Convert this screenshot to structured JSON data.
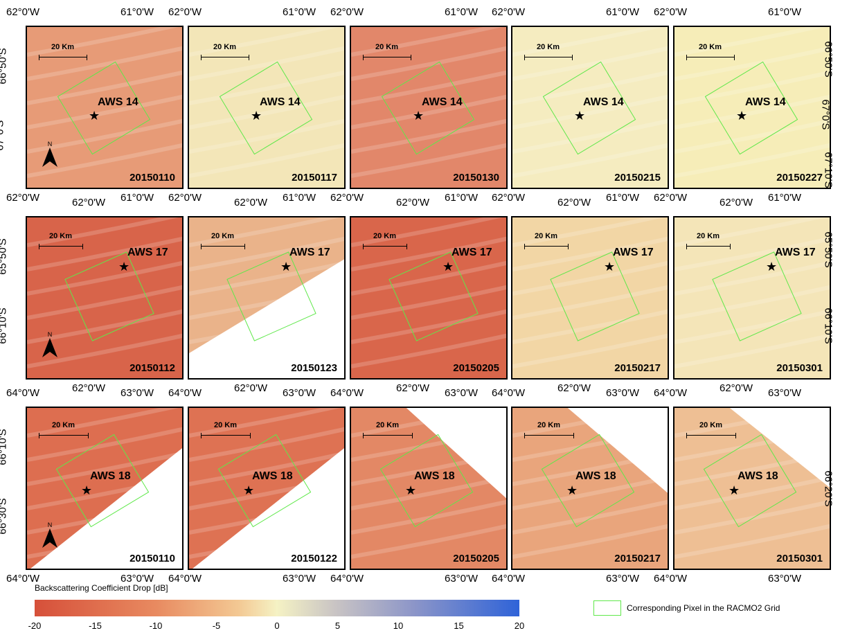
{
  "rows": [
    {
      "station": "AWS 14",
      "dates": [
        "20150110",
        "20150117",
        "20150130",
        "20150215",
        "20150227"
      ],
      "top_ticks": [
        "62°0'W",
        "61°0'W"
      ],
      "bottom_ticks": [
        "62°0'W",
        "61°0'W"
      ],
      "right_ticks": [
        "66°50'S",
        "67°0'S",
        "67°10'S"
      ],
      "left_ticks": [
        "66°50'S",
        "67°0'S"
      ],
      "bg": [
        "#e79b77",
        "#f3e6b8",
        "#e2876a",
        "#f5ecc0",
        "#f6edb8"
      ]
    },
    {
      "station": "AWS 17",
      "dates": [
        "20150112",
        "20150123",
        "20150205",
        "20150217",
        "20150301"
      ],
      "top_ticks": [
        "62°0'W"
      ],
      "bottom_ticks": [
        "62°0'W"
      ],
      "right_ticks": [
        "65°50'S",
        "66°10'S"
      ],
      "left_ticks": [
        "65°50'S",
        "66°10'S"
      ],
      "bg": [
        "#d8644a",
        "#eab38a",
        "#d9664b",
        "#f2d6a5",
        "#f4e5b8"
      ]
    },
    {
      "station": "AWS 18",
      "dates": [
        "20150110",
        "20150122",
        "20150205",
        "20150217",
        "20150301"
      ],
      "top_ticks": [
        "64°0'W",
        "63°0'W"
      ],
      "bottom_ticks": [
        "64°0'W",
        "63°0'W"
      ],
      "right_ticks": [
        "66°20'S"
      ],
      "left_ticks": [
        "66°10'S",
        "66°30'S"
      ],
      "bg": [
        "#dd6e50",
        "#de7253",
        "#e38865",
        "#e9a57c",
        "#eebf94"
      ]
    }
  ],
  "scalebar_label": "20 Km",
  "north_label": "N",
  "colorbar": {
    "title": "Backscattering Coefficient Drop [dB]",
    "ticks": [
      "-20",
      "-15",
      "-10",
      "-5",
      "0",
      "5",
      "10",
      "15",
      "20"
    ],
    "range": [
      -20,
      20
    ],
    "colors": [
      "#d6503a",
      "#f5f2c4",
      "#2f63d8"
    ]
  },
  "legend": {
    "label": "Corresponding Pixel in the RACMO2 Grid",
    "color": "#5fe84a"
  }
}
